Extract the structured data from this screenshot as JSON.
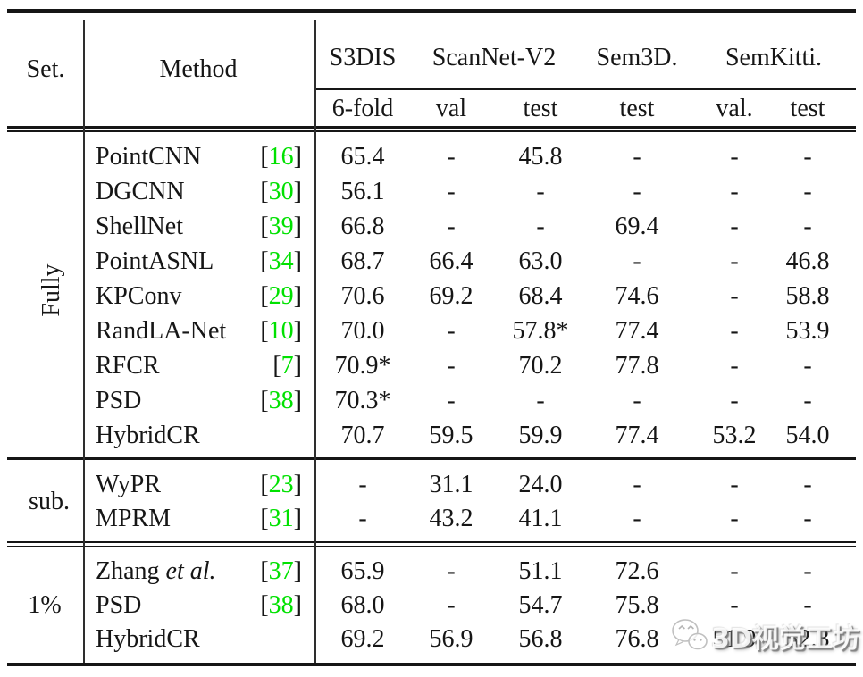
{
  "header": {
    "set": "Set.",
    "method": "Method",
    "groups": [
      {
        "label": "S3DIS"
      },
      {
        "label": "ScanNet-V2"
      },
      {
        "label": "Sem3D."
      },
      {
        "label": "SemKitti."
      }
    ],
    "subheaders": [
      "6-fold",
      "val",
      "test",
      "test",
      "val.",
      "test"
    ]
  },
  "sections": [
    {
      "label": "Fully",
      "rows": [
        {
          "method": "PointCNN",
          "cite": "16",
          "values": [
            "65.4",
            "-",
            "45.8",
            "-",
            "-",
            "-"
          ]
        },
        {
          "method": "DGCNN",
          "cite": "30",
          "values": [
            "56.1",
            "-",
            "-",
            "-",
            "-",
            "-"
          ]
        },
        {
          "method": "ShellNet",
          "cite": "39",
          "values": [
            "66.8",
            "-",
            "-",
            "69.4",
            "-",
            "-"
          ]
        },
        {
          "method": "PointASNL",
          "cite": "34",
          "values": [
            "68.7",
            "66.4",
            "63.0",
            "-",
            "-",
            "46.8"
          ]
        },
        {
          "method": "KPConv",
          "cite": "29",
          "values": [
            "70.6",
            "69.2",
            "68.4",
            "74.6",
            "-",
            "58.8"
          ]
        },
        {
          "method": "RandLA-Net",
          "cite": "10",
          "values": [
            "70.0",
            "-",
            "57.8*",
            "77.4",
            "-",
            "53.9"
          ]
        },
        {
          "method": "RFCR",
          "cite": "7",
          "values": [
            "70.9*",
            "-",
            "70.2",
            "77.8",
            "-",
            "-"
          ]
        },
        {
          "method": "PSD",
          "cite": "38",
          "values": [
            "70.3*",
            "-",
            "-",
            "-",
            "-",
            "-"
          ]
        },
        {
          "method": "HybridCR",
          "values": [
            "70.7",
            "59.5",
            "59.9",
            "77.4",
            "53.2",
            "54.0"
          ]
        }
      ]
    },
    {
      "label": "sub.",
      "rows": [
        {
          "method": "WyPR",
          "cite": "23",
          "values": [
            "-",
            "31.1",
            "24.0",
            "-",
            "-",
            "-"
          ]
        },
        {
          "method": "MPRM",
          "cite": "31",
          "values": [
            "-",
            "43.2",
            "41.1",
            "-",
            "-",
            "-"
          ]
        }
      ]
    },
    {
      "label": "1%",
      "rows": [
        {
          "method": "Zhang",
          "method_italic": "et al.",
          "cite": "37",
          "values": [
            "65.9",
            "-",
            "51.1",
            "72.6",
            "-",
            "-"
          ]
        },
        {
          "method": "PSD",
          "cite": "38",
          "values": [
            "68.0",
            "-",
            "54.7",
            "75.8",
            "-",
            "-"
          ]
        },
        {
          "method": "HybridCR",
          "values": [
            "69.2",
            "56.9",
            "56.8",
            "76.8",
            "51.9",
            "52.3"
          ]
        }
      ]
    }
  ],
  "watermark": {
    "text": "3D视觉工坊"
  },
  "colors": {
    "citation_green": "#00e100",
    "text": "#161616",
    "rule_black": "#161616",
    "watermark_text": "#ffffff"
  }
}
